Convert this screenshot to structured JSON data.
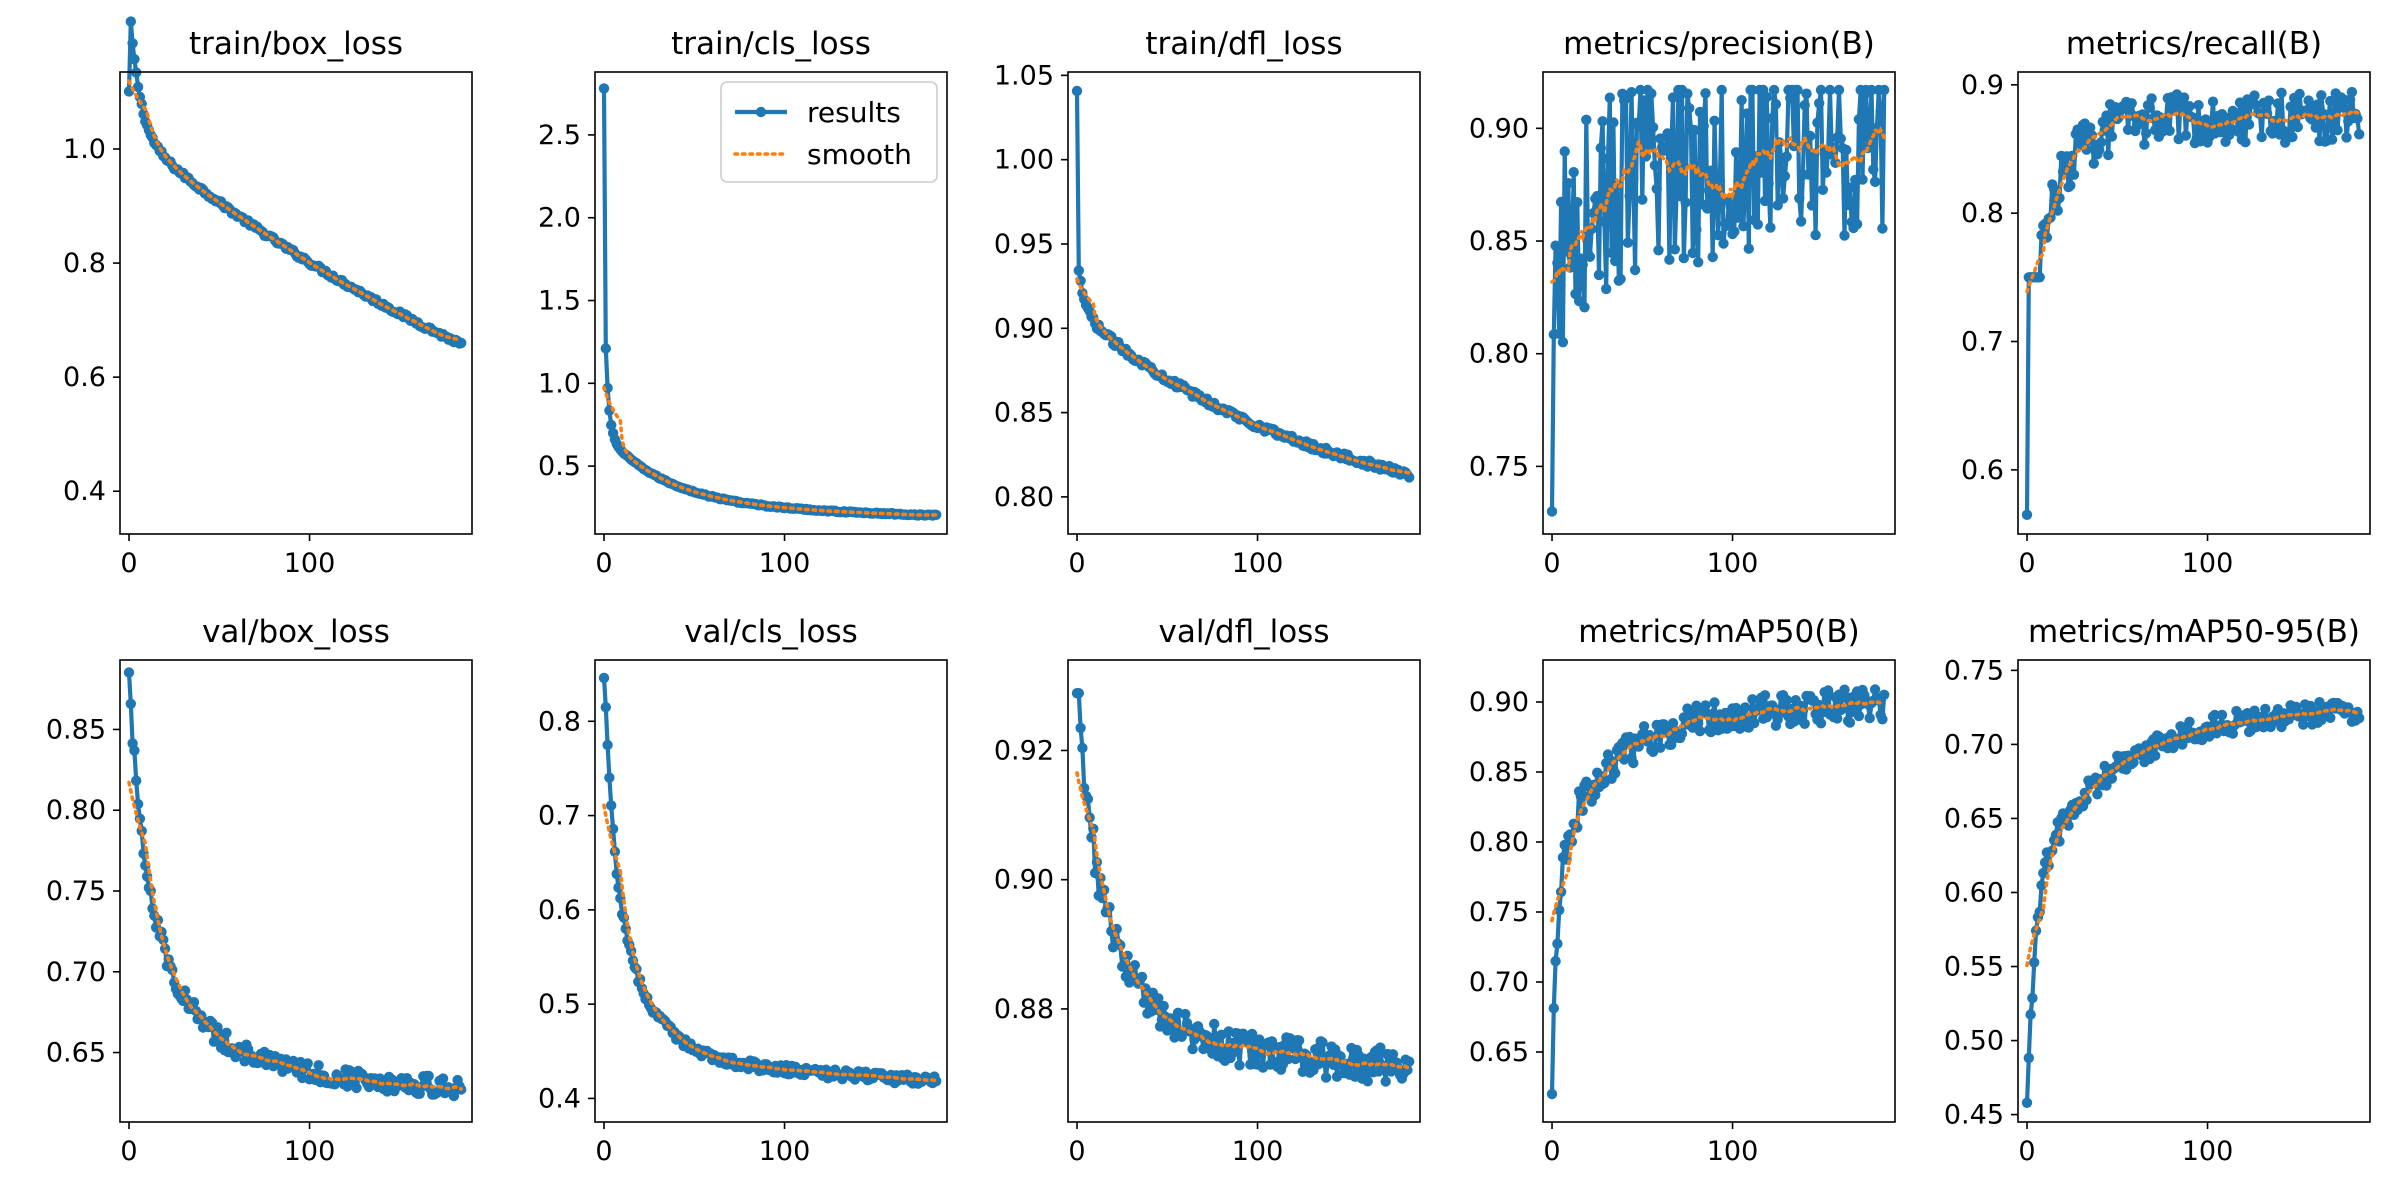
{
  "figure": {
    "layout": "2 rows x 5 columns",
    "legend_entries": [
      "results",
      "smooth"
    ],
    "results_color": "#1f77b4",
    "smooth_color": "#ff7f0e"
  },
  "chart_data": [
    {
      "type": "line",
      "title": "train/box_loss",
      "xlim": [
        -5,
        190
      ],
      "ylim": [
        0.325,
        1.135
      ],
      "xticks": [
        0,
        100
      ],
      "yticks": [
        {
          "v": 0.4,
          "t": "0.4"
        },
        {
          "v": 0.6,
          "t": "0.6"
        },
        {
          "v": 0.8,
          "t": "0.8"
        },
        {
          "v": 1.0,
          "t": "1.0"
        }
      ],
      "model": {
        "kind": "decay",
        "start": 1.1,
        "a": 0.23,
        "k": 0.18,
        "b": 0.67,
        "tau": 260,
        "end": 0.36,
        "noise": 0.004
      },
      "legend": false
    },
    {
      "type": "line",
      "title": "train/cls_loss",
      "xlim": [
        -5,
        190
      ],
      "ylim": [
        0.09,
        2.88
      ],
      "xticks": [
        0,
        100
      ],
      "yticks": [
        {
          "v": 0.5,
          "t": "0.5"
        },
        {
          "v": 1.0,
          "t": "1.0"
        },
        {
          "v": 1.5,
          "t": "1.5"
        },
        {
          "v": 2.0,
          "t": "2.0"
        },
        {
          "v": 2.5,
          "t": "2.5"
        }
      ],
      "model": {
        "kind": "decay",
        "start": 2.78,
        "a": 0.9,
        "k": 0.55,
        "b": 0.5,
        "tau": 35,
        "end": 0.2,
        "noise": 0.004
      },
      "legend": true
    },
    {
      "type": "line",
      "title": "train/dfl_loss",
      "xlim": [
        -5,
        190
      ],
      "ylim": [
        0.778,
        1.052
      ],
      "xticks": [
        0,
        100
      ],
      "yticks": [
        {
          "v": 0.8,
          "t": "0.80"
        },
        {
          "v": 0.85,
          "t": "0.85"
        },
        {
          "v": 0.9,
          "t": "0.90"
        },
        {
          "v": 0.95,
          "t": "0.95"
        },
        {
          "v": 1.0,
          "t": "1.00"
        },
        {
          "v": 1.05,
          "t": "1.05"
        }
      ],
      "model": {
        "kind": "decay",
        "start": 1.04,
        "a": 0.03,
        "k": 0.25,
        "b": 0.12,
        "tau": 120,
        "end": 0.79,
        "noise": 0.002
      },
      "legend": false
    },
    {
      "type": "line",
      "title": "metrics/precision(B)",
      "xlim": [
        -5,
        190
      ],
      "ylim": [
        0.72,
        0.925
      ],
      "xticks": [
        0,
        100
      ],
      "yticks": [
        {
          "v": 0.75,
          "t": "0.75"
        },
        {
          "v": 0.8,
          "t": "0.80"
        },
        {
          "v": 0.85,
          "t": "0.85"
        },
        {
          "v": 0.9,
          "t": "0.90"
        }
      ],
      "model": {
        "kind": "rise",
        "start": 0.73,
        "a": 0.09,
        "k": 0.35,
        "b": 0.045,
        "tau": 60,
        "plateau": 0.78,
        "noise": 0.045,
        "clip": [
          0.76,
          0.917
        ]
      },
      "legend": false
    },
    {
      "type": "line",
      "title": "metrics/recall(B)",
      "xlim": [
        -5,
        190
      ],
      "ylim": [
        0.55,
        0.91
      ],
      "xticks": [
        0,
        100
      ],
      "yticks": [
        {
          "v": 0.6,
          "t": "0.6"
        },
        {
          "v": 0.7,
          "t": "0.7"
        },
        {
          "v": 0.8,
          "t": "0.8"
        },
        {
          "v": 0.9,
          "t": "0.9"
        }
      ],
      "model": {
        "kind": "rise",
        "start": 0.565,
        "a": 0.16,
        "k": 0.22,
        "b": 0.13,
        "tau": 18,
        "plateau": 0.6,
        "noise": 0.02,
        "clip": [
          0.75,
          0.895
        ]
      },
      "legend": false
    },
    {
      "type": "line",
      "title": "val/box_loss",
      "xlim": [
        -5,
        190
      ],
      "ylim": [
        0.607,
        0.893
      ],
      "xticks": [
        0,
        100
      ],
      "yticks": [
        {
          "v": 0.65,
          "t": "0.65"
        },
        {
          "v": 0.7,
          "t": "0.70"
        },
        {
          "v": 0.75,
          "t": "0.75"
        },
        {
          "v": 0.8,
          "t": "0.80"
        },
        {
          "v": 0.85,
          "t": "0.85"
        }
      ],
      "model": {
        "kind": "decay",
        "start": 0.882,
        "a": 0.11,
        "k": 0.12,
        "b": 0.14,
        "tau": 28,
        "end": 0.628,
        "noise": 0.006
      },
      "legend": false
    },
    {
      "type": "line",
      "title": "val/cls_loss",
      "xlim": [
        -5,
        190
      ],
      "ylim": [
        0.375,
        0.865
      ],
      "xticks": [
        0,
        100
      ],
      "yticks": [
        {
          "v": 0.4,
          "t": "0.4"
        },
        {
          "v": 0.5,
          "t": "0.5"
        },
        {
          "v": 0.6,
          "t": "0.6"
        },
        {
          "v": 0.7,
          "t": "0.7"
        },
        {
          "v": 0.8,
          "t": "0.8"
        }
      ],
      "model": {
        "kind": "decay",
        "start": 0.843,
        "a": 0.2,
        "k": 0.2,
        "b": 0.24,
        "tau": 20,
        "end": 0.418,
        "noise": 0.005
      },
      "legend": false
    },
    {
      "type": "line",
      "title": "val/dfl_loss",
      "xlim": [
        -5,
        190
      ],
      "ylim": [
        0.8625,
        0.934
      ],
      "xticks": [
        0,
        100
      ],
      "yticks": [
        {
          "v": 0.88,
          "t": "0.88"
        },
        {
          "v": 0.9,
          "t": "0.90"
        },
        {
          "v": 0.92,
          "t": "0.92"
        }
      ],
      "model": {
        "kind": "decay",
        "start": 0.927,
        "a": 0.02,
        "k": 0.15,
        "b": 0.04,
        "tau": 25,
        "end": 0.871,
        "noise": 0.0028
      },
      "legend": false
    },
    {
      "type": "line",
      "title": "metrics/mAP50(B)",
      "xlim": [
        -5,
        190
      ],
      "ylim": [
        0.6,
        0.93
      ],
      "xticks": [
        0,
        100
      ],
      "yticks": [
        {
          "v": 0.65,
          "t": "0.65"
        },
        {
          "v": 0.7,
          "t": "0.70"
        },
        {
          "v": 0.75,
          "t": "0.75"
        },
        {
          "v": 0.8,
          "t": "0.80"
        },
        {
          "v": 0.85,
          "t": "0.85"
        },
        {
          "v": 0.9,
          "t": "0.90"
        }
      ],
      "model": {
        "kind": "rise",
        "start": 0.62,
        "a": 0.16,
        "k": 0.3,
        "b": 0.11,
        "tau": 35,
        "plateau": 0.0,
        "noise": 0.012,
        "clip": [
          0.6,
          0.918
        ]
      },
      "legend": false
    },
    {
      "type": "line",
      "title": "metrics/mAP50-95(B)",
      "xlim": [
        -5,
        190
      ],
      "ylim": [
        0.445,
        0.757
      ],
      "xticks": [
        0,
        100
      ],
      "yticks": [
        {
          "v": 0.45,
          "t": "0.45"
        },
        {
          "v": 0.5,
          "t": "0.50"
        },
        {
          "v": 0.55,
          "t": "0.55"
        },
        {
          "v": 0.6,
          "t": "0.60"
        },
        {
          "v": 0.65,
          "t": "0.65"
        },
        {
          "v": 0.7,
          "t": "0.70"
        },
        {
          "v": 0.75,
          "t": "0.75"
        }
      ],
      "model": {
        "kind": "rise",
        "start": 0.458,
        "a": 0.16,
        "k": 0.25,
        "b": 0.12,
        "tau": 45,
        "plateau": 0.0,
        "noise": 0.008,
        "clip": [
          0.45,
          0.744
        ]
      },
      "legend": false
    }
  ]
}
